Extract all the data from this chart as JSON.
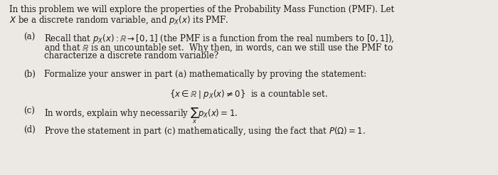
{
  "background_color": "#ece9e4",
  "text_color": "#1a1a1a",
  "figsize": [
    7.0,
    2.46
  ],
  "dpi": 100,
  "font_size": 8.5,
  "intro_line1": "In this problem we will explore the properties of the Probability Mass Function (PMF). Let",
  "intro_line2": "$X$ be a discrete random variable, and $p_X(x)$ its PMF.",
  "part_a_label": "(a)",
  "part_a_line1": "Recall that $p_X(x): \\mathbb{R} \\to [0, 1]$ (the PMF is a function from the real numbers to $[0,1]$),",
  "part_a_line2": "and that $\\mathbb{R}$ is an uncountable set.  Why then, in words, can we still use the PMF to",
  "part_a_line3": "characterize a discrete random variable?",
  "part_b_label": "(b)",
  "part_b_line1": "Formalize your answer in part (a) mathematically by proving the statement:",
  "part_b_math": "$\\{x \\in \\mathbb{R} \\mid p_X(x) \\neq 0\\}$  is a countable set.",
  "part_c_label": "(c)",
  "part_c_line1": "In words, explain why necessarily $\\sum_x p_X(x) = 1$.",
  "part_d_label": "(d)",
  "part_d_line1": "Prove the statement in part (c) mathematically, using the fact that $P(\\Omega) = 1$."
}
